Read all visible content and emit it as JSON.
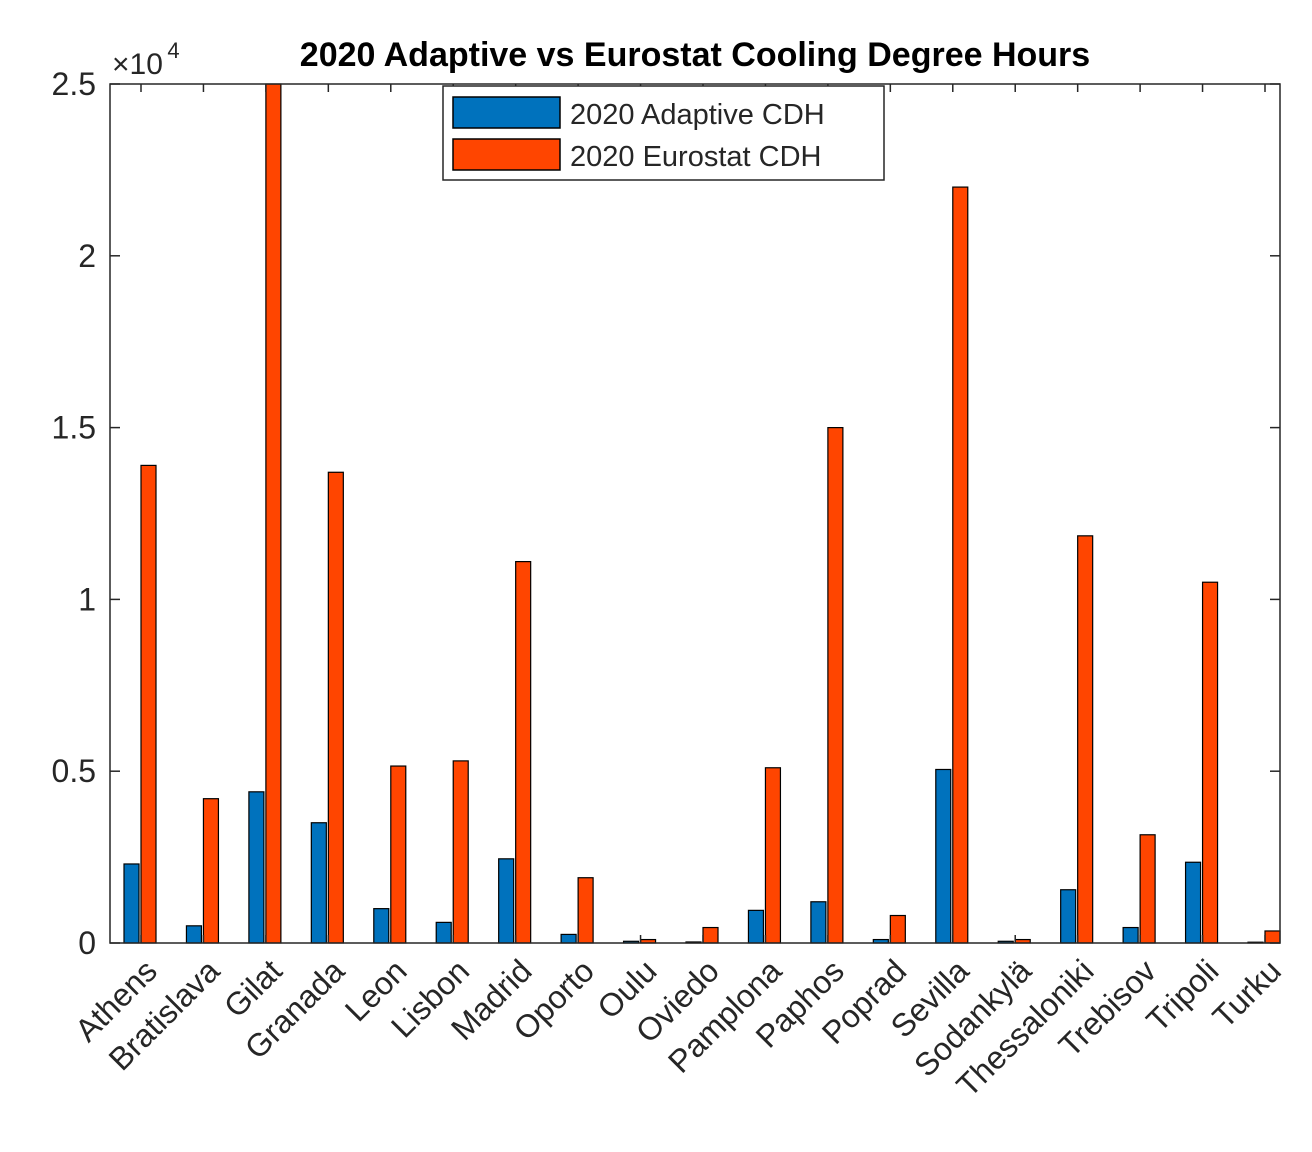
{
  "chart_data": {
    "type": "bar",
    "title": "2020 Adaptive vs Eurostat Cooling Degree Hours",
    "xlabel": "",
    "ylabel": "",
    "exponent_label": "×10",
    "exponent_power": "4",
    "ylim": [
      0,
      2.5
    ],
    "yticks": [
      0,
      0.5,
      1,
      1.5,
      2,
      2.5
    ],
    "ytick_labels": [
      "0",
      "0.5",
      "1",
      "1.5",
      "2",
      "2.5"
    ],
    "categories": [
      "Athens",
      "Bratislava",
      "Gilat",
      "Granada",
      "Leon",
      "Lisbon",
      "Madrid",
      "Oporto",
      "Oulu",
      "Oviedo",
      "Pamplona",
      "Paphos",
      "Poprad",
      "Sevilla",
      "Sodankylä",
      "Thessaloniki",
      "Trebisov",
      "Tripoli",
      "Turku"
    ],
    "series": [
      {
        "name": "2020 Adaptive CDH",
        "color": "#0072BD",
        "values": [
          0.23,
          0.05,
          0.44,
          0.35,
          0.1,
          0.06,
          0.245,
          0.025,
          0.005,
          0.003,
          0.095,
          0.12,
          0.01,
          0.505,
          0.005,
          0.155,
          0.045,
          0.235,
          0.002
        ]
      },
      {
        "name": "2020 Eurostat CDH",
        "color": "#FF4500",
        "values": [
          1.39,
          0.42,
          2.5,
          1.37,
          0.515,
          0.53,
          1.11,
          0.19,
          0.01,
          0.045,
          0.51,
          1.5,
          0.08,
          2.2,
          0.01,
          1.185,
          0.315,
          1.05,
          0.035
        ]
      }
    ],
    "legend_position": "top-center",
    "grid": false
  }
}
